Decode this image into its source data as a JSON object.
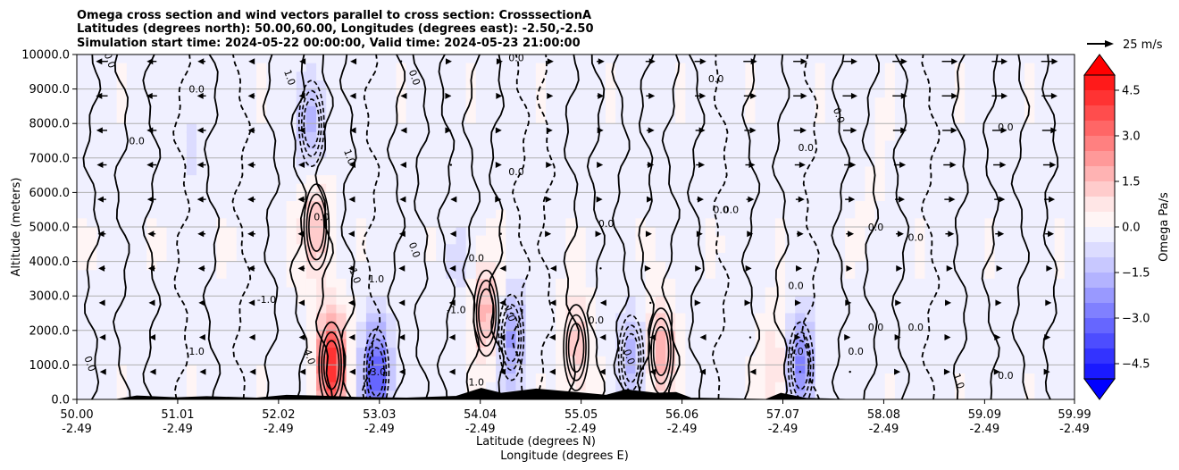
{
  "chart_data": {
    "type": "heatmap",
    "title_lines": [
      "Omega cross section and wind vectors parallel to cross section: CrosssectionA",
      "Latitudes (degrees north): 50.00,60.00, Longitudes (degrees east): -2.50,-2.50",
      "Simulation start time: 2024-05-22 00:00:00, Valid time: 2024-05-23 21:00:00"
    ],
    "xlabel_line1": "Latitude (degrees N)",
    "xlabel_line2": "Longitude (degrees E)",
    "ylabel": "Altitude (meters)",
    "x_range": [
      50.0,
      59.99
    ],
    "y_range": [
      0,
      10000
    ],
    "x_ticks": [
      {
        "value": 50.0,
        "lat": "50.00",
        "lon": "-2.49"
      },
      {
        "value": 51.01,
        "lat": "51.01",
        "lon": "-2.49"
      },
      {
        "value": 52.02,
        "lat": "52.02",
        "lon": "-2.49"
      },
      {
        "value": 53.03,
        "lat": "53.03",
        "lon": "-2.49"
      },
      {
        "value": 54.04,
        "lat": "54.04",
        "lon": "-2.49"
      },
      {
        "value": 55.05,
        "lat": "55.05",
        "lon": "-2.49"
      },
      {
        "value": 56.06,
        "lat": "56.06",
        "lon": "-2.49"
      },
      {
        "value": 57.07,
        "lat": "57.07",
        "lon": "-2.49"
      },
      {
        "value": 58.08,
        "lat": "58.08",
        "lon": "-2.49"
      },
      {
        "value": 59.09,
        "lat": "59.09",
        "lon": "-2.49"
      },
      {
        "value": 59.99,
        "lat": "59.99",
        "lon": "-2.49"
      }
    ],
    "y_ticks": [
      {
        "value": 0,
        "label": "0.0"
      },
      {
        "value": 1000,
        "label": "1000.0"
      },
      {
        "value": 2000,
        "label": "2000.0"
      },
      {
        "value": 3000,
        "label": "3000.0"
      },
      {
        "value": 4000,
        "label": "4000.0"
      },
      {
        "value": 5000,
        "label": "5000.0"
      },
      {
        "value": 6000,
        "label": "6000.0"
      },
      {
        "value": 7000,
        "label": "7000.0"
      },
      {
        "value": 8000,
        "label": "8000.0"
      },
      {
        "value": 9000,
        "label": "9000.0"
      },
      {
        "value": 10000,
        "label": "10000.0"
      }
    ],
    "grid_horizontal": true,
    "colorbar": {
      "label": "Omega Pa/s",
      "range": [
        -5.0,
        5.0
      ],
      "ticks": [
        {
          "value": 4.5,
          "label": "4.5"
        },
        {
          "value": 3.0,
          "label": "3.0"
        },
        {
          "value": 1.5,
          "label": "1.5"
        },
        {
          "value": 0.0,
          "label": "0.0"
        },
        {
          "value": -1.5,
          "label": "−1.5"
        },
        {
          "value": -3.0,
          "label": "−3.0"
        },
        {
          "value": -4.5,
          "label": "−4.5"
        }
      ],
      "colors_top_to_bottom": [
        "#ff1a1a",
        "#ff3333",
        "#ff4d4d",
        "#ff6666",
        "#ff8080",
        "#ff9999",
        "#ffb3b3",
        "#ffcccc",
        "#ffe6e6",
        "#fff5f5",
        "#f0f0ff",
        "#dcdcff",
        "#c8c8ff",
        "#b3b3ff",
        "#9999ff",
        "#8080ff",
        "#6666ff",
        "#4d4dff",
        "#3333ff",
        "#1a1aff"
      ],
      "extend_max_color": "#ff0000",
      "extend_min_color": "#0000ff"
    },
    "quiver_key": {
      "label": "25 m/s",
      "speed": 25
    },
    "contour_levels": [
      -1.0,
      0.0,
      1.0
    ],
    "omega_anomalies": [
      {
        "lat": 52.55,
        "alt": 1000,
        "value": 4.5
      },
      {
        "lat": 52.4,
        "alt": 5000,
        "value": 1.8
      },
      {
        "lat": 53.0,
        "alt": 800,
        "value": -3.5
      },
      {
        "lat": 52.35,
        "alt": 8000,
        "value": -1.5
      },
      {
        "lat": 54.1,
        "alt": 2500,
        "value": 2.0
      },
      {
        "lat": 54.35,
        "alt": 1800,
        "value": -2.0
      },
      {
        "lat": 55.0,
        "alt": 1500,
        "value": 1.5
      },
      {
        "lat": 55.55,
        "alt": 1200,
        "value": -1.5
      },
      {
        "lat": 55.85,
        "alt": 1400,
        "value": 2.0
      },
      {
        "lat": 57.25,
        "alt": 1000,
        "value": -2.5
      },
      {
        "lat": 57.0,
        "alt": 900,
        "value": 1.2
      },
      {
        "lat": 51.15,
        "alt": 7500,
        "value": -0.6
      },
      {
        "lat": 53.8,
        "alt": 4000,
        "value": -0.5
      },
      {
        "lat": 58.0,
        "alt": 6000,
        "value": 0.2
      }
    ],
    "terrain": [
      {
        "lat": 50.4,
        "alt": 0
      },
      {
        "lat": 50.6,
        "alt": 100
      },
      {
        "lat": 51.0,
        "alt": 50
      },
      {
        "lat": 51.3,
        "alt": 80
      },
      {
        "lat": 51.8,
        "alt": 40
      },
      {
        "lat": 52.1,
        "alt": 120
      },
      {
        "lat": 52.4,
        "alt": 100
      },
      {
        "lat": 52.8,
        "alt": 60
      },
      {
        "lat": 53.3,
        "alt": 40
      },
      {
        "lat": 53.8,
        "alt": 90
      },
      {
        "lat": 54.05,
        "alt": 320
      },
      {
        "lat": 54.25,
        "alt": 180
      },
      {
        "lat": 54.6,
        "alt": 300
      },
      {
        "lat": 55.0,
        "alt": 200
      },
      {
        "lat": 55.3,
        "alt": 120
      },
      {
        "lat": 55.5,
        "alt": 280
      },
      {
        "lat": 55.8,
        "alt": 180
      },
      {
        "lat": 56.0,
        "alt": 200
      },
      {
        "lat": 56.15,
        "alt": 40
      },
      {
        "lat": 56.9,
        "alt": 0
      },
      {
        "lat": 57.05,
        "alt": 180
      },
      {
        "lat": 57.3,
        "alt": 30
      },
      {
        "lat": 57.7,
        "alt": 0
      }
    ],
    "wind_rows": [
      {
        "alt": 9800,
        "u": [
          -12,
          -10,
          -8,
          -6,
          -4,
          -2,
          0,
          2,
          4,
          6,
          8,
          10,
          12,
          14,
          14,
          15,
          15,
          16,
          16,
          17
        ]
      },
      {
        "alt": 8800,
        "u": [
          -12,
          -11,
          -9,
          -7,
          -5,
          -3,
          -1,
          1,
          3,
          5,
          7,
          9,
          11,
          13,
          14,
          15,
          15,
          16,
          16,
          16
        ]
      },
      {
        "alt": 7800,
        "u": [
          -11,
          -10,
          -9,
          -7,
          -5,
          -3,
          -1,
          1,
          2,
          4,
          6,
          8,
          10,
          12,
          13,
          14,
          14,
          15,
          15,
          15
        ]
      },
      {
        "alt": 6800,
        "u": [
          -10,
          -10,
          -9,
          -8,
          -6,
          -4,
          -2,
          0,
          2,
          3,
          5,
          7,
          9,
          10,
          11,
          12,
          12,
          13,
          13,
          13
        ]
      },
      {
        "alt": 5800,
        "u": [
          -9,
          -9,
          -9,
          -8,
          -7,
          -5,
          -3,
          -1,
          1,
          2,
          4,
          5,
          7,
          8,
          9,
          10,
          10,
          11,
          11,
          11
        ]
      },
      {
        "alt": 4800,
        "u": [
          -8,
          -8,
          -8,
          -8,
          -7,
          -6,
          -4,
          -2,
          0,
          1,
          2,
          3,
          5,
          6,
          7,
          8,
          8,
          9,
          9,
          9
        ]
      },
      {
        "alt": 3800,
        "u": [
          -7,
          -7,
          -7,
          -7,
          -7,
          -6,
          -5,
          -3,
          -2,
          -1,
          0,
          1,
          2,
          3,
          4,
          5,
          5,
          6,
          6,
          6
        ]
      },
      {
        "alt": 2800,
        "u": [
          -6,
          -6,
          -6,
          -6,
          -6,
          -6,
          -5,
          -4,
          -3,
          -2,
          -1,
          0,
          1,
          1,
          2,
          3,
          3,
          3,
          4,
          4
        ]
      },
      {
        "alt": 1800,
        "u": [
          -5,
          -5,
          -5,
          -5,
          -5,
          -5,
          -5,
          -4,
          -4,
          -3,
          -2,
          -2,
          -1,
          0,
          1,
          1,
          2,
          2,
          2,
          2
        ]
      },
      {
        "alt": 800,
        "u": [
          -4,
          -4,
          -4,
          -4,
          -4,
          -4,
          -4,
          -4,
          -3,
          -3,
          -3,
          -2,
          -2,
          -1,
          0,
          0,
          1,
          1,
          1,
          1
        ]
      }
    ],
    "contour_labels": [
      {
        "lat": 50.3,
        "alt": 9800,
        "text": "0.0"
      },
      {
        "lat": 51.2,
        "alt": 8900,
        "text": "0.0"
      },
      {
        "lat": 50.6,
        "alt": 7400,
        "text": "0.0"
      },
      {
        "lat": 52.1,
        "alt": 9300,
        "text": "1.0"
      },
      {
        "lat": 52.7,
        "alt": 7000,
        "text": "1.0"
      },
      {
        "lat": 52.45,
        "alt": 5200,
        "text": "0.0"
      },
      {
        "lat": 52.75,
        "alt": 3600,
        "text": "-1.0"
      },
      {
        "lat": 51.9,
        "alt": 2800,
        "text": "-1.0"
      },
      {
        "lat": 53.0,
        "alt": 3400,
        "text": "1.0"
      },
      {
        "lat": 53.35,
        "alt": 9300,
        "text": "0.0"
      },
      {
        "lat": 53.35,
        "alt": 4300,
        "text": "0.0"
      },
      {
        "lat": 54.4,
        "alt": 9800,
        "text": "0.0"
      },
      {
        "lat": 54.4,
        "alt": 6500,
        "text": "0.0"
      },
      {
        "lat": 54.0,
        "alt": 4000,
        "text": "0.0"
      },
      {
        "lat": 53.8,
        "alt": 2500,
        "text": "-1.0"
      },
      {
        "lat": 54.3,
        "alt": 2500,
        "text": "-1.0"
      },
      {
        "lat": 55.3,
        "alt": 5000,
        "text": "0.0"
      },
      {
        "lat": 55.2,
        "alt": 2200,
        "text": "0.0"
      },
      {
        "lat": 56.4,
        "alt": 9200,
        "text": "0.0"
      },
      {
        "lat": 56.45,
        "alt": 5400,
        "text": "0.0"
      },
      {
        "lat": 56.55,
        "alt": 5400,
        "text": "0.0"
      },
      {
        "lat": 57.3,
        "alt": 7200,
        "text": "0.0"
      },
      {
        "lat": 57.6,
        "alt": 8200,
        "text": "0.0"
      },
      {
        "lat": 57.2,
        "alt": 3200,
        "text": "0.0"
      },
      {
        "lat": 58.0,
        "alt": 4900,
        "text": "0.0"
      },
      {
        "lat": 58.4,
        "alt": 4600,
        "text": "0.0"
      },
      {
        "lat": 58.0,
        "alt": 2000,
        "text": "0.0"
      },
      {
        "lat": 58.4,
        "alt": 2000,
        "text": "0.0"
      },
      {
        "lat": 57.8,
        "alt": 1300,
        "text": "0.0"
      },
      {
        "lat": 58.8,
        "alt": 500,
        "text": "1.0"
      },
      {
        "lat": 59.3,
        "alt": 7800,
        "text": "0.0"
      },
      {
        "lat": 59.3,
        "alt": 600,
        "text": "0.0"
      },
      {
        "lat": 50.1,
        "alt": 1000,
        "text": "0.0"
      },
      {
        "lat": 51.2,
        "alt": 1300,
        "text": "1.0"
      },
      {
        "lat": 52.3,
        "alt": 1200,
        "text": "4.0"
      },
      {
        "lat": 53.0,
        "alt": 700,
        "text": "-3.0"
      },
      {
        "lat": 54.0,
        "alt": 400,
        "text": "1.0"
      },
      {
        "lat": 55.5,
        "alt": 1200,
        "text": "0.0"
      },
      {
        "lat": 57.2,
        "alt": 1300,
        "text": "0.0"
      }
    ]
  }
}
